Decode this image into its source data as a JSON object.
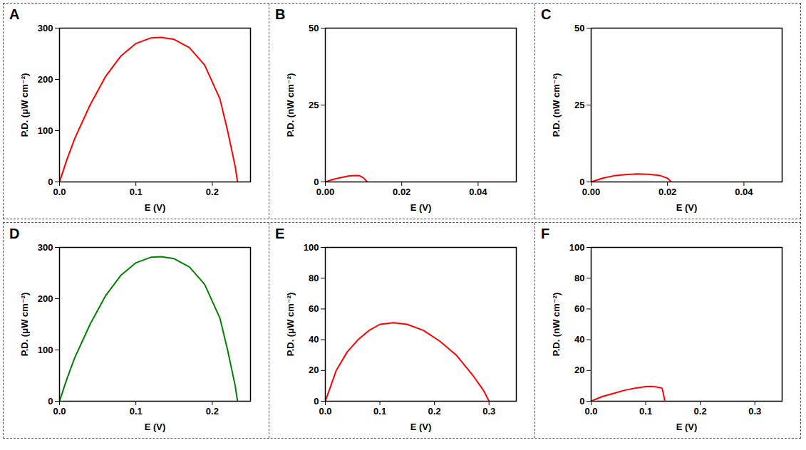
{
  "chart_data": [
    {
      "type": "line",
      "title": "A",
      "x_label": "E (V)",
      "y_label": "P.D. (μW cm⁻²)",
      "x": [
        0,
        0.01,
        0.02,
        0.04,
        0.06,
        0.08,
        0.1,
        0.12,
        0.133,
        0.15,
        0.17,
        0.19,
        0.21,
        0.22,
        0.23,
        0.233
      ],
      "values": [
        0,
        45,
        85,
        150,
        205,
        245,
        270,
        281,
        282,
        278,
        262,
        228,
        162,
        100,
        30,
        0
      ],
      "color": "#ff0000",
      "xlim": [
        0,
        0.25
      ],
      "xticks": [
        {
          "value": 0,
          "label": "0.0"
        },
        0.1,
        0.2
      ],
      "ylim": [
        0,
        300
      ],
      "yticks": [
        0,
        100,
        200,
        300
      ],
      "grid": false
    },
    {
      "type": "line",
      "title": "B",
      "x_label": "E (V)",
      "y_label": "P.D. (nW cm⁻²)",
      "x": [
        0,
        0.002,
        0.004,
        0.006,
        0.008,
        0.009,
        0.01,
        0.011
      ],
      "values": [
        0,
        0.8,
        1.4,
        1.9,
        2.1,
        2.0,
        1.3,
        0
      ],
      "color": "#ff0000",
      "xlim": [
        0,
        0.05
      ],
      "xticks": [
        {
          "value": 0,
          "label": "0.00"
        },
        0.02,
        0.04
      ],
      "ylim": [
        0,
        50
      ],
      "yticks": [
        0,
        25,
        50
      ],
      "grid": false
    },
    {
      "type": "line",
      "title": "C",
      "x_label": "E (V)",
      "y_label": "P.D. (nW cm⁻²)",
      "x": [
        0,
        0.003,
        0.006,
        0.009,
        0.012,
        0.015,
        0.018,
        0.02,
        0.021
      ],
      "values": [
        0,
        1.2,
        2.0,
        2.4,
        2.6,
        2.5,
        2.1,
        1.2,
        0
      ],
      "color": "#ff0000",
      "xlim": [
        0,
        0.05
      ],
      "xticks": [
        {
          "value": 0,
          "label": "0.00"
        },
        0.02,
        0.04
      ],
      "ylim": [
        0,
        50
      ],
      "yticks": [
        0,
        25,
        50
      ],
      "grid": false
    },
    {
      "type": "line",
      "title": "D",
      "x_label": "E (V)",
      "y_label": "P.D. (μW cm⁻²)",
      "x": [
        0,
        0.01,
        0.02,
        0.04,
        0.06,
        0.08,
        0.1,
        0.12,
        0.133,
        0.15,
        0.17,
        0.19,
        0.21,
        0.22,
        0.23,
        0.233
      ],
      "values": [
        0,
        45,
        85,
        150,
        205,
        245,
        270,
        281,
        282,
        278,
        262,
        228,
        162,
        100,
        30,
        0
      ],
      "color": "#008000",
      "xlim": [
        0,
        0.25
      ],
      "xticks": [
        {
          "value": 0,
          "label": "0.0"
        },
        0.1,
        0.2
      ],
      "ylim": [
        0,
        300
      ],
      "yticks": [
        0,
        100,
        200,
        300
      ],
      "grid": false
    },
    {
      "type": "line",
      "title": "E",
      "x_label": "E (V)",
      "y_label": "P.D. (μW cm⁻²)",
      "x": [
        0,
        0.02,
        0.04,
        0.06,
        0.08,
        0.1,
        0.125,
        0.15,
        0.18,
        0.21,
        0.24,
        0.27,
        0.29,
        0.3
      ],
      "values": [
        0,
        20,
        32,
        40,
        46,
        50,
        51,
        50,
        46,
        39,
        30,
        17,
        7,
        0
      ],
      "color": "#ff0000",
      "xlim": [
        0,
        0.35
      ],
      "xticks": [
        {
          "value": 0,
          "label": "0.0"
        },
        0.1,
        0.2,
        0.3
      ],
      "ylim": [
        0,
        100
      ],
      "yticks": [
        0,
        20,
        40,
        60,
        80,
        100
      ],
      "grid": false
    },
    {
      "type": "line",
      "title": "F",
      "x_label": "E (V)",
      "y_label": "P.D. (nW cm⁻²)",
      "x": [
        0,
        0.02,
        0.04,
        0.06,
        0.08,
        0.1,
        0.11,
        0.12,
        0.13,
        0.133,
        0.135
      ],
      "values": [
        0,
        3,
        5,
        7,
        8.5,
        9.5,
        9.6,
        9.3,
        8.5,
        4,
        0
      ],
      "color": "#ff0000",
      "xlim": [
        0,
        0.35
      ],
      "xticks": [
        {
          "value": 0,
          "label": "0.0"
        },
        0.1,
        0.2,
        0.3
      ],
      "ylim": [
        0,
        100
      ],
      "yticks": [
        0,
        20,
        40,
        60,
        80,
        100
      ],
      "grid": false
    }
  ]
}
